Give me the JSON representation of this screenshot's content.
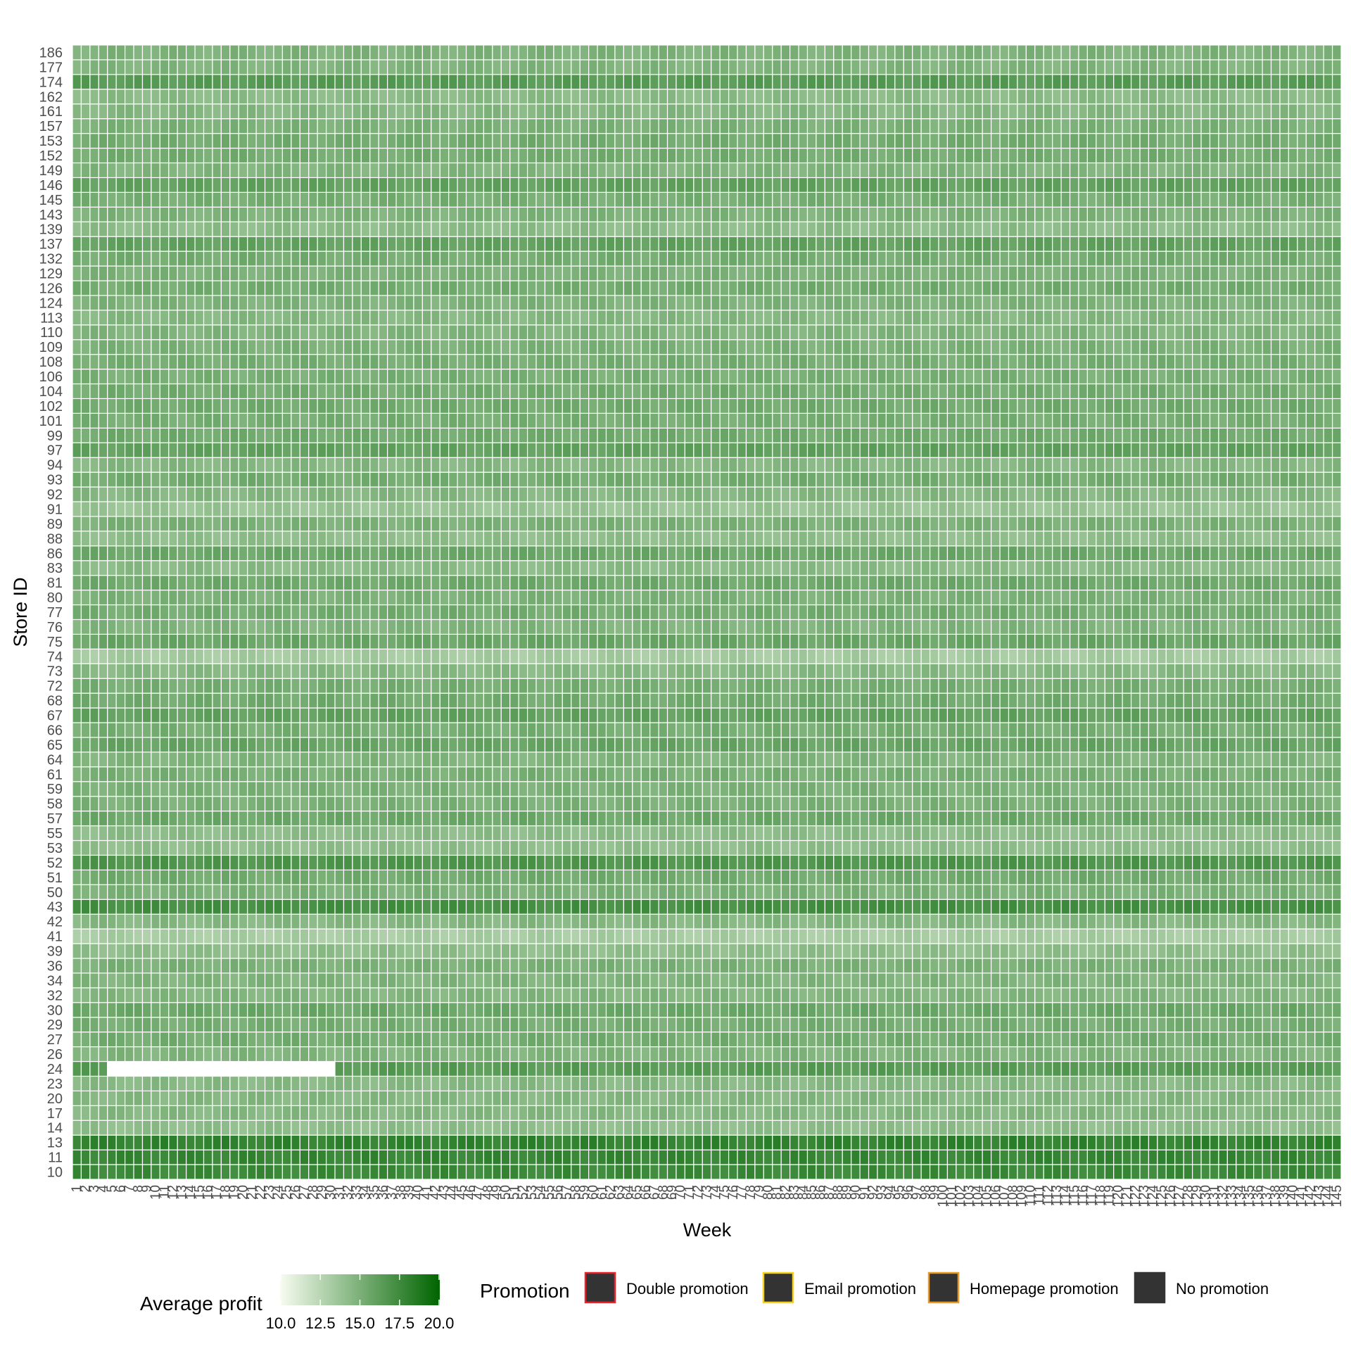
{
  "chart_data": {
    "type": "heatmap",
    "xlabel": "Week",
    "ylabel": "Store ID",
    "x": [
      1,
      2,
      3,
      4,
      5,
      6,
      7,
      8,
      9,
      10,
      11,
      12,
      13,
      14,
      15,
      16,
      17,
      18,
      19,
      20,
      21,
      22,
      23,
      24,
      25,
      26,
      27,
      28,
      29,
      30,
      31,
      32,
      33,
      34,
      35,
      36,
      37,
      38,
      39,
      40,
      41,
      42,
      43,
      44,
      45,
      46,
      47,
      48,
      49,
      50,
      51,
      52,
      53,
      54,
      55,
      56,
      57,
      58,
      59,
      60,
      61,
      62,
      63,
      64,
      65,
      66,
      67,
      68,
      69,
      70,
      71,
      72,
      73,
      74,
      75,
      76,
      77,
      78,
      79,
      80,
      81,
      82,
      83,
      84,
      85,
      86,
      87,
      88,
      89,
      90,
      91,
      92,
      93,
      94,
      95,
      96,
      97,
      98,
      99,
      100,
      101,
      102,
      103,
      104,
      105,
      106,
      107,
      108,
      109,
      110,
      111,
      112,
      113,
      114,
      115,
      116,
      117,
      118,
      119,
      120,
      121,
      122,
      123,
      124,
      125,
      126,
      127,
      128,
      129,
      130,
      131,
      132,
      133,
      134,
      135,
      136,
      137,
      138,
      139,
      140,
      141,
      142,
      143,
      144,
      145
    ],
    "y": [
      10,
      11,
      13,
      14,
      17,
      20,
      23,
      24,
      26,
      27,
      29,
      30,
      32,
      34,
      36,
      39,
      41,
      42,
      43,
      50,
      51,
      52,
      53,
      55,
      57,
      58,
      59,
      61,
      64,
      65,
      66,
      67,
      68,
      72,
      73,
      74,
      75,
      76,
      77,
      80,
      81,
      83,
      86,
      88,
      89,
      91,
      92,
      93,
      94,
      97,
      99,
      101,
      102,
      104,
      106,
      108,
      109,
      110,
      113,
      124,
      126,
      129,
      132,
      137,
      139,
      143,
      145,
      146,
      149,
      152,
      153,
      157,
      161,
      162,
      174,
      177,
      186
    ],
    "row_mean_profit": [
      17.6,
      17.8,
      18.0,
      14.2,
      14.6,
      14.6,
      14.5,
      16.4,
      14.8,
      15.3,
      15.2,
      15.6,
      14.7,
      14.8,
      15.0,
      14.2,
      13.2,
      14.6,
      17.2,
      15.0,
      15.4,
      16.8,
      14.2,
      14.3,
      15.6,
      15.0,
      15.0,
      15.1,
      14.8,
      15.8,
      15.2,
      16.0,
      15.4,
      15.2,
      14.5,
      13.3,
      15.7,
      14.8,
      15.3,
      15.0,
      15.5,
      14.4,
      15.6,
      14.2,
      15.0,
      13.8,
      14.6,
      15.3,
      14.6,
      16.0,
      15.4,
      15.2,
      15.4,
      15.3,
      15.1,
      15.2,
      15.0,
      14.8,
      14.6,
      14.9,
      15.3,
      15.0,
      15.3,
      16.0,
      14.3,
      14.9,
      15.2,
      16.0,
      14.8,
      15.3,
      15.3,
      15.0,
      14.6,
      14.4,
      16.4,
      14.8,
      14.9
    ],
    "missing_cells": [
      {
        "store": 24,
        "weeks": [
          5,
          30
        ]
      }
    ],
    "color_scale": {
      "title": "Average profit",
      "min": 10.0,
      "max": 20.0,
      "low_color": "#f7fcf0",
      "high_color": "#006400",
      "breaks": [
        "10.0",
        "12.5",
        "15.0",
        "17.5",
        "20.0"
      ]
    },
    "promotion_legend": {
      "title": "Promotion",
      "items": [
        {
          "label": "Double promotion",
          "border": "#e8232b"
        },
        {
          "label": "Email promotion",
          "border": "#f2d21a"
        },
        {
          "label": "Homepage promotion",
          "border": "#e99a24"
        },
        {
          "label": "No promotion",
          "border": "#333333"
        }
      ],
      "fill": "#333333"
    },
    "cell_border_color": "#ffffff",
    "missing_color": "#ffffff",
    "grid": false,
    "legend_position": "bottom"
  }
}
